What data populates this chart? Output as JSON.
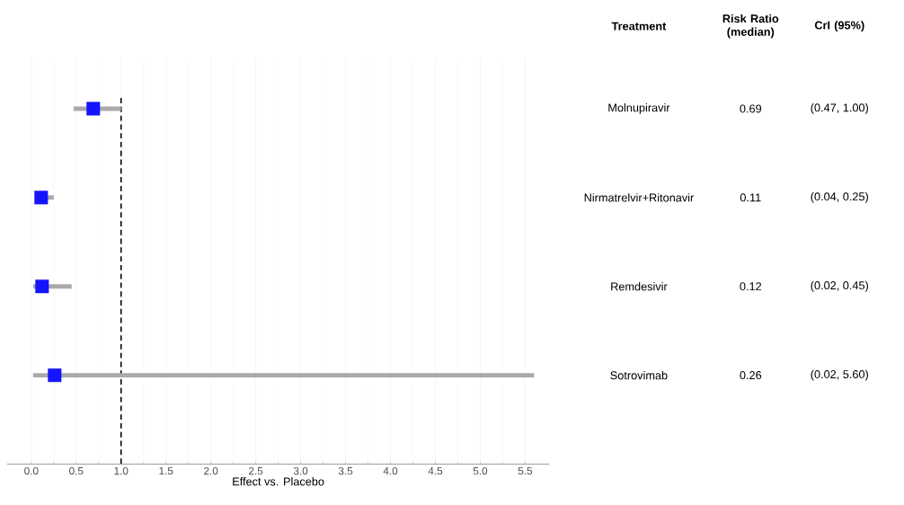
{
  "chart_data": {
    "type": "scatter",
    "orientation": "horizontal",
    "categories": [
      "Molnupiravir",
      "Nirmatrelvir+Ritonavir",
      "Remdesivir",
      "Sotrovimab"
    ],
    "values": [
      0.69,
      0.11,
      0.12,
      0.26
    ],
    "errors": [
      [
        0.47,
        1.0
      ],
      [
        0.04,
        0.25
      ],
      [
        0.02,
        0.45
      ],
      [
        0.02,
        5.6
      ]
    ],
    "value_labels": [
      "0.69",
      "0.11",
      "0.12",
      "0.26"
    ],
    "color": "#1414ff",
    "marker": "square",
    "xlabel": "Effect vs. Placebo",
    "xlim": [
      -0.27,
      5.77
    ],
    "xticks": [
      {
        "value": 0,
        "label": "0.0"
      },
      {
        "value": 0.5,
        "label": "0.5"
      },
      {
        "value": 1,
        "label": "1.0"
      },
      {
        "value": 1.5,
        "label": "1.5"
      },
      {
        "value": 2,
        "label": "2.0"
      },
      {
        "value": 2.5,
        "label": "2.5"
      },
      {
        "value": 3,
        "label": "3.0"
      },
      {
        "value": 3.5,
        "label": "3.5"
      },
      {
        "value": 4,
        "label": "4.0"
      },
      {
        "value": 4.5,
        "label": "4.5"
      },
      {
        "value": 5,
        "label": "5.0"
      },
      {
        "value": 5.5,
        "label": "5.5"
      }
    ],
    "ref_lines": [
      {
        "axis": "x",
        "value": 1,
        "color": "#000000",
        "line_style": "dashed"
      }
    ],
    "grid": true,
    "tick_labels": "x",
    "annotations": [
      "Treatment",
      "Risk Ratio (median)",
      "CrI (95%)",
      "(0.47, 1.00)",
      "(0.04, 0.25)",
      "(0.02, 0.45)",
      "(0.02, 5.60)"
    ]
  }
}
